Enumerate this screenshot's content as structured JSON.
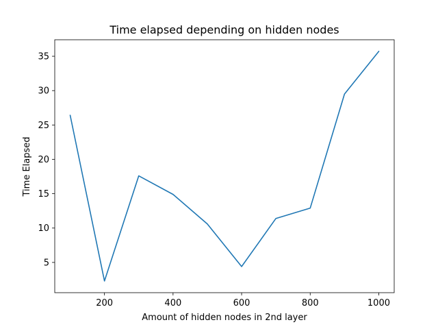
{
  "chart_data": {
    "type": "line",
    "title": "Time elapsed depending on hidden nodes",
    "xlabel": "Amount of hidden nodes in 2nd layer",
    "ylabel": "Time Elapsed",
    "x": [
      100,
      200,
      300,
      400,
      500,
      600,
      700,
      800,
      900,
      1000
    ],
    "series": [
      {
        "values": [
          26.4,
          2.3,
          17.6,
          14.9,
          10.6,
          4.4,
          11.4,
          12.9,
          29.5,
          35.7
        ],
        "color": "#1f77b4"
      }
    ],
    "xlim": [
      55,
      1045
    ],
    "ylim": [
      0.6,
      37.4
    ],
    "xticks": [
      200,
      400,
      600,
      800,
      1000
    ],
    "yticks": [
      5,
      10,
      15,
      20,
      25,
      30,
      35
    ],
    "grid": false,
    "legend": "none"
  }
}
